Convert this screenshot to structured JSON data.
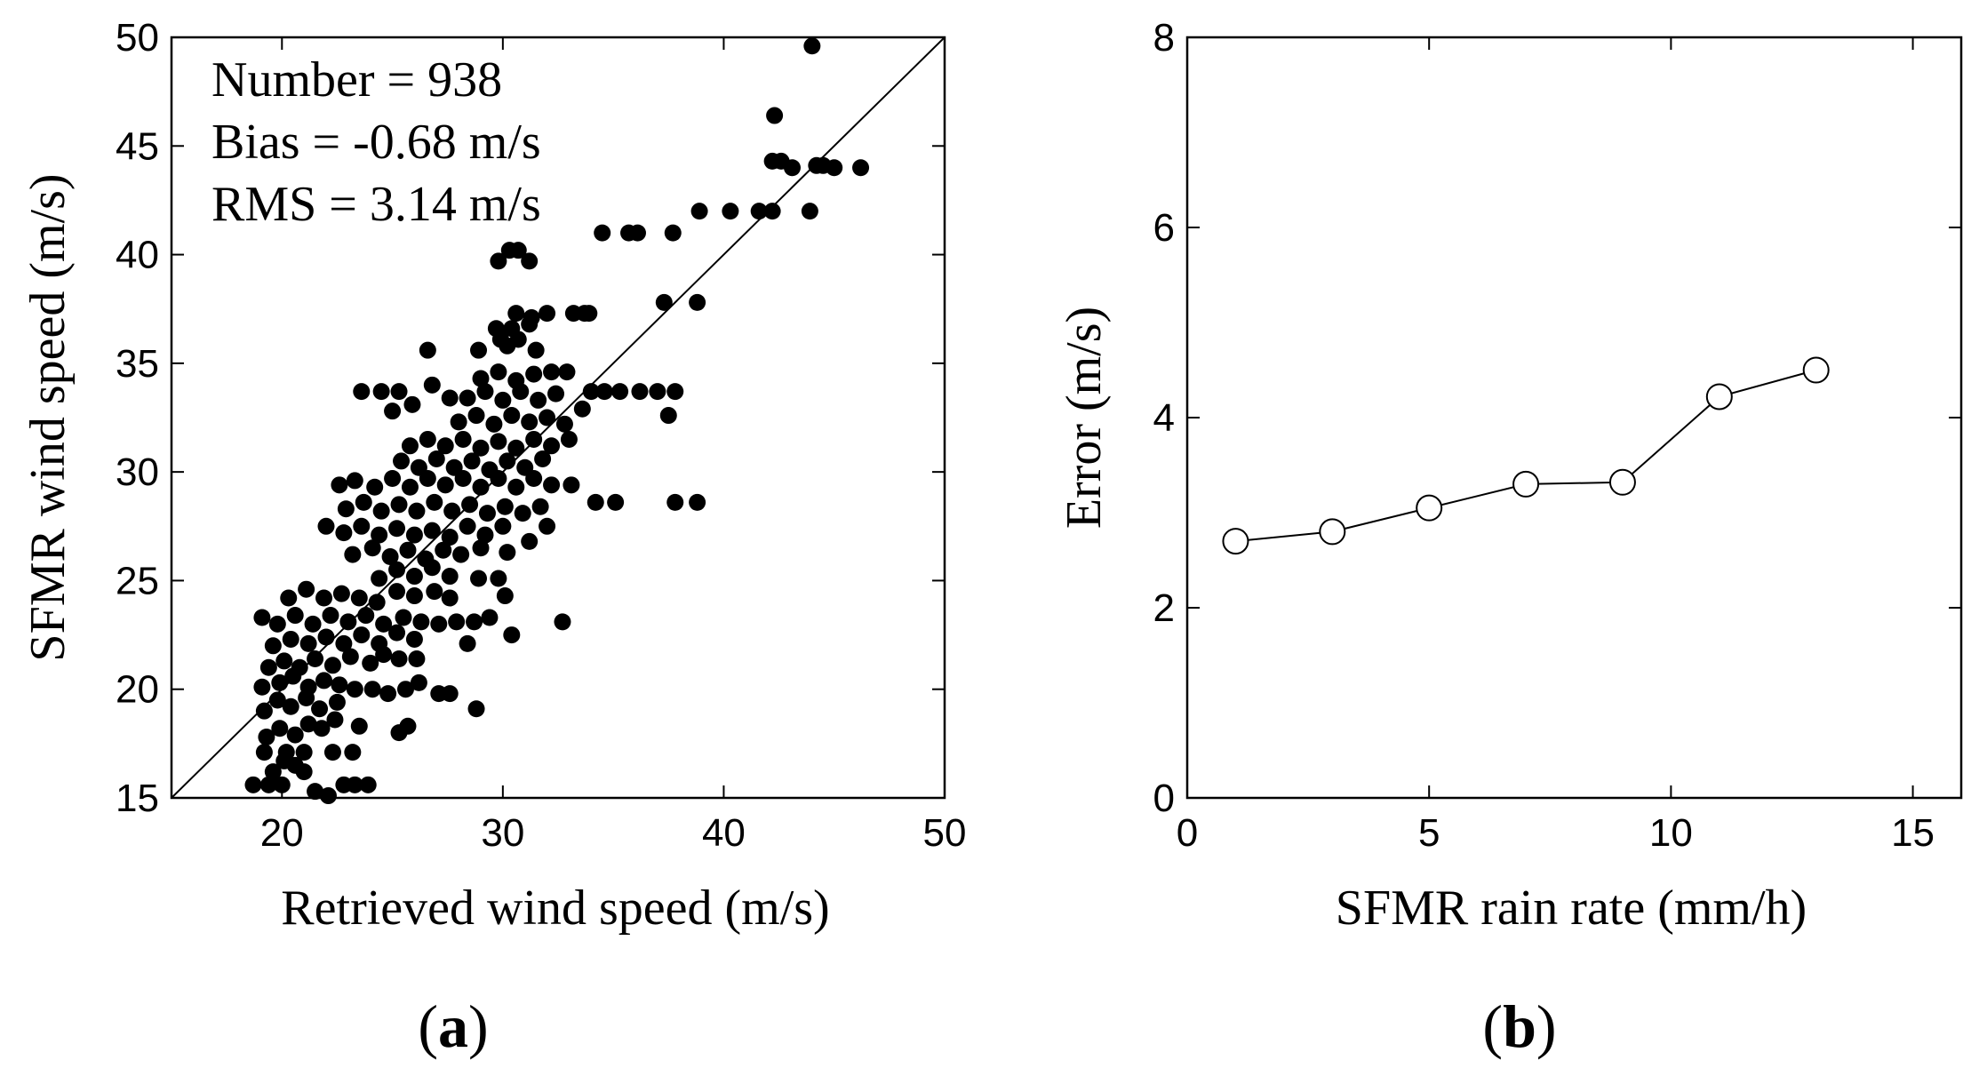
{
  "chart_data": [
    {
      "type": "scatter",
      "panel": "a",
      "panel_label": {
        "open": "(",
        "letter": "a",
        "close": ")"
      },
      "xlabel": "Retrieved wind speed (m/s)",
      "ylabel": "SFMR wind speed (m/s)",
      "xlim": [
        15,
        50
      ],
      "ylim": [
        15,
        50
      ],
      "xticks": [
        20,
        30,
        40,
        50
      ],
      "yticks": [
        15,
        20,
        25,
        30,
        35,
        40,
        45,
        50
      ],
      "reference_line": {
        "name": "1:1 line",
        "from": [
          15,
          15
        ],
        "to": [
          50,
          50
        ]
      },
      "annotations": [
        "Number = 938",
        "Bias = -0.68 m/s",
        "RMS = 3.14 m/s"
      ],
      "series": [
        {
          "name": "SFMR vs retrieved",
          "points": [
            [
              18.7,
              15.6
            ],
            [
              19.4,
              15.6
            ],
            [
              20.0,
              15.6
            ],
            [
              21.5,
              15.3
            ],
            [
              22.1,
              15.1
            ],
            [
              22.8,
              15.6
            ],
            [
              23.3,
              15.6
            ],
            [
              23.9,
              15.6
            ],
            [
              19.6,
              16.2
            ],
            [
              20.1,
              16.7
            ],
            [
              20.6,
              16.5
            ],
            [
              21.0,
              16.2
            ],
            [
              19.2,
              17.1
            ],
            [
              20.2,
              17.1
            ],
            [
              21.0,
              17.1
            ],
            [
              22.3,
              17.1
            ],
            [
              23.2,
              17.1
            ],
            [
              19.3,
              17.8
            ],
            [
              19.9,
              18.2
            ],
            [
              20.6,
              17.9
            ],
            [
              21.2,
              18.4
            ],
            [
              21.8,
              18.2
            ],
            [
              22.4,
              18.6
            ],
            [
              23.5,
              18.3
            ],
            [
              25.3,
              18.0
            ],
            [
              25.7,
              18.3
            ],
            [
              28.8,
              19.1
            ],
            [
              19.2,
              19.0
            ],
            [
              19.8,
              19.5
            ],
            [
              20.4,
              19.2
            ],
            [
              21.1,
              19.6
            ],
            [
              21.7,
              19.1
            ],
            [
              22.5,
              19.4
            ],
            [
              19.1,
              20.1
            ],
            [
              19.9,
              20.3
            ],
            [
              20.5,
              20.6
            ],
            [
              21.2,
              20.1
            ],
            [
              21.9,
              20.4
            ],
            [
              22.6,
              20.2
            ],
            [
              23.3,
              20.0
            ],
            [
              24.1,
              20.0
            ],
            [
              24.8,
              19.8
            ],
            [
              25.6,
              20.0
            ],
            [
              26.2,
              20.3
            ],
            [
              27.1,
              19.8
            ],
            [
              27.6,
              19.8
            ],
            [
              19.4,
              21.0
            ],
            [
              20.1,
              21.3
            ],
            [
              20.8,
              21.0
            ],
            [
              21.5,
              21.4
            ],
            [
              22.3,
              21.1
            ],
            [
              23.1,
              21.5
            ],
            [
              24.0,
              21.2
            ],
            [
              24.6,
              21.6
            ],
            [
              25.3,
              21.4
            ],
            [
              26.1,
              21.4
            ],
            [
              19.6,
              22.0
            ],
            [
              20.4,
              22.3
            ],
            [
              21.2,
              22.1
            ],
            [
              22.0,
              22.4
            ],
            [
              22.8,
              22.1
            ],
            [
              23.6,
              22.5
            ],
            [
              24.4,
              22.1
            ],
            [
              25.2,
              22.6
            ],
            [
              26.0,
              22.3
            ],
            [
              28.4,
              22.1
            ],
            [
              30.4,
              22.5
            ],
            [
              19.1,
              23.3
            ],
            [
              19.8,
              23.0
            ],
            [
              20.6,
              23.4
            ],
            [
              21.4,
              23.0
            ],
            [
              22.2,
              23.4
            ],
            [
              23.0,
              23.1
            ],
            [
              23.8,
              23.4
            ],
            [
              24.6,
              23.0
            ],
            [
              25.5,
              23.3
            ],
            [
              26.3,
              23.1
            ],
            [
              27.1,
              23.0
            ],
            [
              27.9,
              23.1
            ],
            [
              28.7,
              23.1
            ],
            [
              29.4,
              23.3
            ],
            [
              32.7,
              23.1
            ],
            [
              20.3,
              24.2
            ],
            [
              21.1,
              24.6
            ],
            [
              21.9,
              24.2
            ],
            [
              22.7,
              24.4
            ],
            [
              23.5,
              24.2
            ],
            [
              24.3,
              24.0
            ],
            [
              25.2,
              24.5
            ],
            [
              26.0,
              24.3
            ],
            [
              26.9,
              24.5
            ],
            [
              27.6,
              24.2
            ],
            [
              30.1,
              24.3
            ],
            [
              24.4,
              25.1
            ],
            [
              25.2,
              25.5
            ],
            [
              26.0,
              25.2
            ],
            [
              26.8,
              25.6
            ],
            [
              27.6,
              25.2
            ],
            [
              28.9,
              25.1
            ],
            [
              29.8,
              25.1
            ],
            [
              23.2,
              26.2
            ],
            [
              24.1,
              26.5
            ],
            [
              24.9,
              26.1
            ],
            [
              25.7,
              26.4
            ],
            [
              26.5,
              26.0
            ],
            [
              27.3,
              26.4
            ],
            [
              28.1,
              26.2
            ],
            [
              29.0,
              26.5
            ],
            [
              30.2,
              26.3
            ],
            [
              22.0,
              27.5
            ],
            [
              22.8,
              27.2
            ],
            [
              23.6,
              27.5
            ],
            [
              24.4,
              27.1
            ],
            [
              25.2,
              27.4
            ],
            [
              26.0,
              27.1
            ],
            [
              26.8,
              27.3
            ],
            [
              27.6,
              27.0
            ],
            [
              28.4,
              27.5
            ],
            [
              29.2,
              27.1
            ],
            [
              30.0,
              27.5
            ],
            [
              31.2,
              26.8
            ],
            [
              32.0,
              27.5
            ],
            [
              22.9,
              28.3
            ],
            [
              23.7,
              28.6
            ],
            [
              24.5,
              28.2
            ],
            [
              25.3,
              28.5
            ],
            [
              26.1,
              28.2
            ],
            [
              26.9,
              28.6
            ],
            [
              27.7,
              28.2
            ],
            [
              28.5,
              28.5
            ],
            [
              29.3,
              28.1
            ],
            [
              30.1,
              28.4
            ],
            [
              30.9,
              28.1
            ],
            [
              31.7,
              28.4
            ],
            [
              34.2,
              28.6
            ],
            [
              35.1,
              28.6
            ],
            [
              37.8,
              28.6
            ],
            [
              38.8,
              28.6
            ],
            [
              22.6,
              29.4
            ],
            [
              23.3,
              29.6
            ],
            [
              24.2,
              29.3
            ],
            [
              25.0,
              29.7
            ],
            [
              25.8,
              29.3
            ],
            [
              26.6,
              29.7
            ],
            [
              27.4,
              29.4
            ],
            [
              28.2,
              29.7
            ],
            [
              29.0,
              29.3
            ],
            [
              29.8,
              29.7
            ],
            [
              30.6,
              29.3
            ],
            [
              31.4,
              29.7
            ],
            [
              32.2,
              29.4
            ],
            [
              33.1,
              29.4
            ],
            [
              25.4,
              30.5
            ],
            [
              26.2,
              30.2
            ],
            [
              27.0,
              30.6
            ],
            [
              27.8,
              30.2
            ],
            [
              28.6,
              30.5
            ],
            [
              29.4,
              30.1
            ],
            [
              30.2,
              30.5
            ],
            [
              31.0,
              30.2
            ],
            [
              31.8,
              30.6
            ],
            [
              25.8,
              31.2
            ],
            [
              26.6,
              31.5
            ],
            [
              27.4,
              31.2
            ],
            [
              28.2,
              31.5
            ],
            [
              29.0,
              31.1
            ],
            [
              29.8,
              31.4
            ],
            [
              30.6,
              31.1
            ],
            [
              31.4,
              31.5
            ],
            [
              32.2,
              31.2
            ],
            [
              33.0,
              31.5
            ],
            [
              28.0,
              32.3
            ],
            [
              28.8,
              32.6
            ],
            [
              29.6,
              32.2
            ],
            [
              30.4,
              32.6
            ],
            [
              31.2,
              32.3
            ],
            [
              32.0,
              32.5
            ],
            [
              32.8,
              32.2
            ],
            [
              33.6,
              32.9
            ],
            [
              37.5,
              32.6
            ],
            [
              28.4,
              33.4
            ],
            [
              29.2,
              33.7
            ],
            [
              30.0,
              33.3
            ],
            [
              30.8,
              33.7
            ],
            [
              31.6,
              33.3
            ],
            [
              32.4,
              33.6
            ],
            [
              34.0,
              33.7
            ],
            [
              34.6,
              33.7
            ],
            [
              35.3,
              33.7
            ],
            [
              36.2,
              33.7
            ],
            [
              37.0,
              33.7
            ],
            [
              37.8,
              33.7
            ],
            [
              23.6,
              33.7
            ],
            [
              24.5,
              33.7
            ],
            [
              25.3,
              33.7
            ],
            [
              25.0,
              32.8
            ],
            [
              25.9,
              33.1
            ],
            [
              26.8,
              34.0
            ],
            [
              27.6,
              33.4
            ],
            [
              29.0,
              34.3
            ],
            [
              29.8,
              34.6
            ],
            [
              30.6,
              34.2
            ],
            [
              31.4,
              34.5
            ],
            [
              32.2,
              34.6
            ],
            [
              32.9,
              34.6
            ],
            [
              26.6,
              35.6
            ],
            [
              28.9,
              35.6
            ],
            [
              30.2,
              35.8
            ],
            [
              31.5,
              35.6
            ],
            [
              29.7,
              36.6
            ],
            [
              30.4,
              36.6
            ],
            [
              31.2,
              36.8
            ],
            [
              29.9,
              36.1
            ],
            [
              30.7,
              36.1
            ],
            [
              30.6,
              37.3
            ],
            [
              31.3,
              37.1
            ],
            [
              32.0,
              37.3
            ],
            [
              33.2,
              37.3
            ],
            [
              33.7,
              37.3
            ],
            [
              33.9,
              37.3
            ],
            [
              37.3,
              37.8
            ],
            [
              38.8,
              37.8
            ],
            [
              29.8,
              39.7
            ],
            [
              30.3,
              40.2
            ],
            [
              30.7,
              40.2
            ],
            [
              31.2,
              39.7
            ],
            [
              34.5,
              41.0
            ],
            [
              35.7,
              41.0
            ],
            [
              36.1,
              41.0
            ],
            [
              37.7,
              41.0
            ],
            [
              38.9,
              42.0
            ],
            [
              40.3,
              42.0
            ],
            [
              41.6,
              42.0
            ],
            [
              42.2,
              42.0
            ],
            [
              43.9,
              42.0
            ],
            [
              42.2,
              44.3
            ],
            [
              42.6,
              44.3
            ],
            [
              43.1,
              44.0
            ],
            [
              44.2,
              44.1
            ],
            [
              44.5,
              44.1
            ],
            [
              45.0,
              44.0
            ],
            [
              46.2,
              44.0
            ],
            [
              42.3,
              46.4
            ],
            [
              44.0,
              49.6
            ]
          ]
        }
      ]
    },
    {
      "type": "line",
      "panel": "b",
      "panel_label": {
        "open": "(",
        "letter": "b",
        "close": ")"
      },
      "xlabel": "SFMR rain rate (mm/h)",
      "ylabel": "Error (m/s)",
      "xlim": [
        0,
        16
      ],
      "ylim": [
        0,
        8
      ],
      "xticks": [
        0,
        5,
        10,
        15
      ],
      "yticks": [
        0,
        2,
        4,
        6,
        8
      ],
      "series": [
        {
          "name": "Error",
          "marker": "open-circle",
          "x": [
            1,
            3,
            5,
            7,
            9,
            11,
            13
          ],
          "y": [
            2.7,
            2.8,
            3.05,
            3.3,
            3.32,
            4.22,
            4.5
          ]
        }
      ]
    }
  ]
}
